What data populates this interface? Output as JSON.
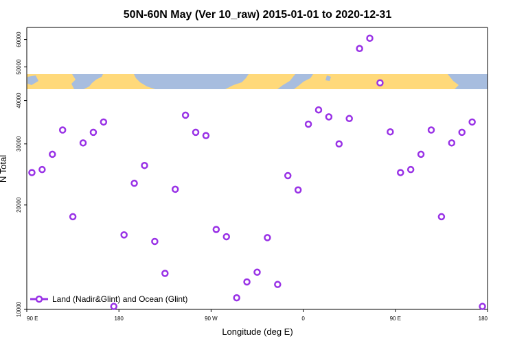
{
  "chart_data": {
    "type": "scatter",
    "title": "50N-60N May (Ver 10_raw)   2015-01-01 to 2020-12-31",
    "xlabel": "Longitude (deg E)",
    "ylabel": "N Total",
    "x_ticks": [
      {
        "value": 90,
        "label": "90 E"
      },
      {
        "value": 180,
        "label": "180"
      },
      {
        "value": 270,
        "label": "90 W"
      },
      {
        "value": 360,
        "label": "0"
      },
      {
        "value": 450,
        "label": "90 E"
      },
      {
        "value": 540,
        "label": "180"
      }
    ],
    "y_ticks": [
      {
        "value": 10000,
        "label": "10000"
      },
      {
        "value": 20000,
        "label": "20000"
      },
      {
        "value": 30000,
        "label": "30000"
      },
      {
        "value": 40000,
        "label": "40000"
      },
      {
        "value": 50000,
        "label": "50000"
      },
      {
        "value": 60000,
        "label": "60000"
      }
    ],
    "xlim": [
      90,
      540
    ],
    "ylim": [
      10000,
      65000
    ],
    "y_scale": "log",
    "grid": false,
    "legend_position": "bottom-left",
    "colors": {
      "marker": "#9932e6",
      "land": "#ffd97a",
      "ocean": "#a7bddf"
    },
    "map_strip": {
      "lat_range": "50N-60N",
      "y_range": [
        42000,
        47000
      ]
    },
    "series": [
      {
        "name": "Land (Nadir&Glint) and Ocean (Glint)",
        "points": [
          [
            95,
            24800
          ],
          [
            105,
            25300
          ],
          [
            115,
            28000
          ],
          [
            125,
            32900
          ],
          [
            135,
            18500
          ],
          [
            145,
            30200
          ],
          [
            155,
            32400
          ],
          [
            165,
            34700
          ],
          [
            175,
            10200
          ],
          [
            185,
            16400
          ],
          [
            195,
            23100
          ],
          [
            205,
            26000
          ],
          [
            215,
            15700
          ],
          [
            225,
            12700
          ],
          [
            235,
            22200
          ],
          [
            245,
            36300
          ],
          [
            255,
            32400
          ],
          [
            265,
            31700
          ],
          [
            275,
            17000
          ],
          [
            285,
            16200
          ],
          [
            295,
            10800
          ],
          [
            305,
            12000
          ],
          [
            315,
            12800
          ],
          [
            325,
            16100
          ],
          [
            335,
            11800
          ],
          [
            345,
            24300
          ],
          [
            355,
            22100
          ],
          [
            365,
            34200
          ],
          [
            375,
            37600
          ],
          [
            385,
            35900
          ],
          [
            395,
            30000
          ],
          [
            405,
            35500
          ],
          [
            415,
            56500
          ],
          [
            425,
            60500
          ],
          [
            435,
            45000
          ],
          [
            445,
            32500
          ],
          [
            455,
            24800
          ],
          [
            465,
            25300
          ],
          [
            475,
            28000
          ],
          [
            485,
            32900
          ],
          [
            495,
            18500
          ],
          [
            505,
            30200
          ],
          [
            515,
            32400
          ],
          [
            525,
            34700
          ],
          [
            535,
            10200
          ]
        ]
      }
    ]
  }
}
